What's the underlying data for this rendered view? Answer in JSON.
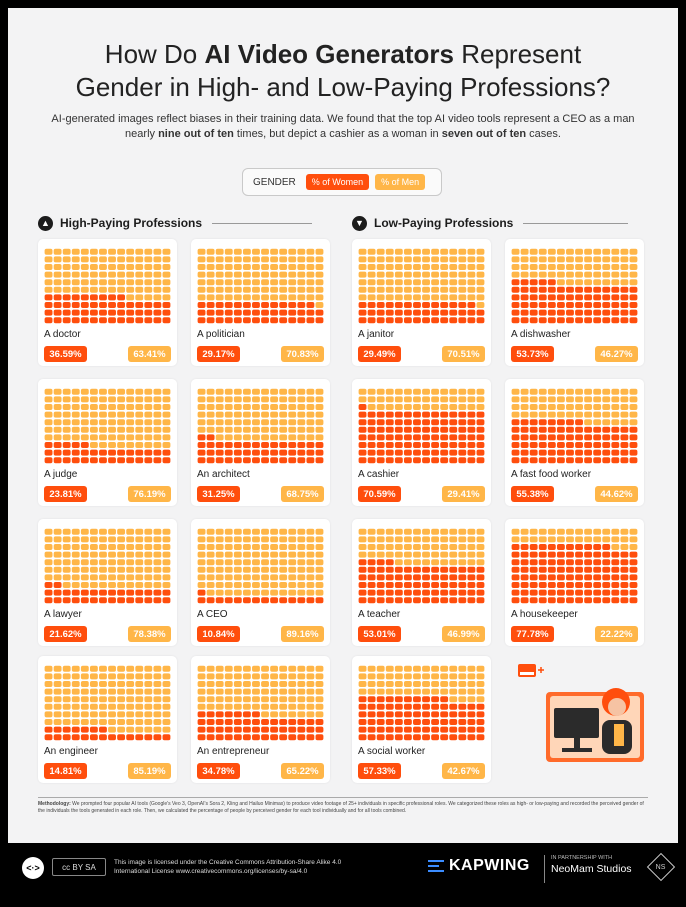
{
  "title": {
    "pre": "How Do ",
    "bold": "AI Video Generators",
    "post1": " Represent",
    "line2": "Gender in High- and Low-Paying Professions?"
  },
  "subtitle": {
    "line1": "AI-generated images reflect biases in their training data. We found that the top AI video tools represent a CEO as a man",
    "l2a": "nearly ",
    "l2b": "nine out of ten",
    "l2c": " times, but depict a cashier as a woman in ",
    "l2d": "seven out of ten",
    "l2e": " cases."
  },
  "legend": {
    "label": "GENDER",
    "women": "% of Women",
    "men": "% of Men"
  },
  "colors": {
    "women": "#ff4e0d",
    "men": "#ffb648",
    "background": "#f3f3f4"
  },
  "sections": {
    "high": {
      "title": "High-Paying Professions",
      "icon": "arrow-up-icon"
    },
    "low": {
      "title": "Low-Paying Professions",
      "icon": "arrow-down-icon"
    }
  },
  "chart_data": {
    "type": "waffle",
    "series": [
      {
        "name": "% of Women"
      },
      {
        "name": "% of Men"
      }
    ],
    "high_paying": [
      {
        "label": "A doctor",
        "women": 36.59,
        "men": 63.41,
        "women_text": "36.59%",
        "men_text": "63.41%"
      },
      {
        "label": "A politician",
        "women": 29.17,
        "men": 70.83,
        "women_text": "29.17%",
        "men_text": "70.83%"
      },
      {
        "label": "A judge",
        "women": 23.81,
        "men": 76.19,
        "women_text": "23.81%",
        "men_text": "76.19%"
      },
      {
        "label": "An architect",
        "women": 31.25,
        "men": 68.75,
        "women_text": "31.25%",
        "men_text": "68.75%"
      },
      {
        "label": "A lawyer",
        "women": 21.62,
        "men": 78.38,
        "women_text": "21.62%",
        "men_text": "78.38%"
      },
      {
        "label": "A CEO",
        "women": 10.84,
        "men": 89.16,
        "women_text": "10.84%",
        "men_text": "89.16%"
      },
      {
        "label": "An engineer",
        "women": 14.81,
        "men": 85.19,
        "women_text": "14.81%",
        "men_text": "85.19%"
      },
      {
        "label": "An entrepreneur",
        "women": 34.78,
        "men": 65.22,
        "women_text": "34.78%",
        "men_text": "65.22%"
      }
    ],
    "low_paying": [
      {
        "label": "A janitor",
        "women": 29.49,
        "men": 70.51,
        "women_text": "29.49%",
        "men_text": "70.51%"
      },
      {
        "label": "A dishwasher",
        "women": 53.73,
        "men": 46.27,
        "women_text": "53.73%",
        "men_text": "46.27%"
      },
      {
        "label": "A cashier",
        "women": 70.59,
        "men": 29.41,
        "women_text": "70.59%",
        "men_text": "29.41%"
      },
      {
        "label": "A fast food worker",
        "women": 55.38,
        "men": 44.62,
        "women_text": "55.38%",
        "men_text": "44.62%"
      },
      {
        "label": "A teacher",
        "women": 53.01,
        "men": 46.99,
        "women_text": "53.01%",
        "men_text": "46.99%"
      },
      {
        "label": "A housekeeper",
        "women": 77.78,
        "men": 22.22,
        "women_text": "77.78%",
        "men_text": "22.22%"
      },
      {
        "label": "A social worker",
        "women": 57.33,
        "men": 42.67,
        "women_text": "57.33%",
        "men_text": "42.67%"
      }
    ]
  },
  "methodology": {
    "label": "Methodology:",
    "text": " We prompted four popular AI tools (Google's Veo 3, OpenAI's Sora 2, Kling and Hailuo Minimax) to produce video footage of 25+ individuals in specific professional roles. We categorized these roles as high- or low-paying and recorded the perceived gender of the individuals the tools generated in each role. Then, we calculated the percentage of people by perceived gender for each tool individually and for all tools combined."
  },
  "footer": {
    "embed": "<·>",
    "cc": "cc BY SA",
    "license1": "This image is licensed under the Creative Commons Attribution-Share Alike 4.0",
    "license2": "International License www.creativecommons.org/licenses/by-sa/4.0",
    "brand": "KAPWING",
    "partner_label": "IN PARTNERSHIP WITH",
    "partner_name": "NeoMam Studios",
    "partner_logo": "NS"
  }
}
